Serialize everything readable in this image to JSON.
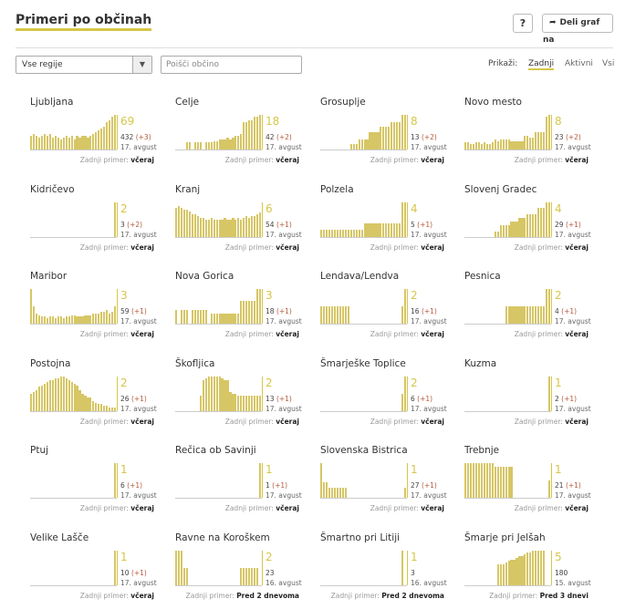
{
  "header": {
    "title": "Primeri po občinah",
    "help_label": "?",
    "share_label": "Deli graf na"
  },
  "filters": {
    "region_select": "Vse regije",
    "search_placeholder": "Poišči občino"
  },
  "view": {
    "label": "Prikaži:",
    "options": [
      "Zadnji",
      "Aktivni",
      "Vsi"
    ],
    "selected": "Zadnji"
  },
  "last_case_label": "Zadnji primer:",
  "colors": {
    "accent": "#d6c649",
    "bar": "#d6c665",
    "delta": "#b45a3c"
  },
  "municipalities": [
    {
      "name": "Ljubljana",
      "latest": "69",
      "total": "432",
      "delta": "(+3)",
      "date": "17. avgust",
      "last": "včeraj",
      "bars": [
        0.4,
        0.45,
        0.4,
        0.35,
        0.4,
        0.45,
        0.4,
        0.45,
        0.35,
        0.4,
        0.35,
        0.3,
        0.35,
        0.4,
        0.35,
        0.4,
        0.3,
        0.4,
        0.35,
        0.4,
        0.4,
        0.35,
        0.4,
        0.45,
        0.5,
        0.55,
        0.6,
        0.65,
        0.8,
        0.85,
        0.95,
        1.0
      ]
    },
    {
      "name": "Celje",
      "latest": "18",
      "total": "42",
      "delta": "(+2)",
      "date": "17. avgust",
      "last": "včeraj",
      "bars": [
        0,
        0,
        0,
        0,
        0.2,
        0.2,
        0,
        0.2,
        0.2,
        0.2,
        0,
        0.2,
        0.2,
        0.2,
        0.25,
        0.25,
        0.3,
        0.3,
        0.3,
        0.35,
        0.3,
        0.35,
        0.4,
        0.4,
        0.45,
        0.8,
        0.8,
        0.85,
        0.85,
        0.95,
        0.95,
        1.0
      ]
    },
    {
      "name": "Grosuplje",
      "latest": "8",
      "total": "13",
      "delta": "(+2)",
      "date": "17. avgust",
      "last": "včeraj",
      "bars": [
        0,
        0,
        0,
        0,
        0,
        0,
        0,
        0,
        0,
        0,
        0,
        0.15,
        0.15,
        0.15,
        0.3,
        0.3,
        0.3,
        0.3,
        0.5,
        0.5,
        0.5,
        0.5,
        0.65,
        0.65,
        0.65,
        0.65,
        0.8,
        0.8,
        0.8,
        0.8,
        1.0,
        1.0
      ]
    },
    {
      "name": "Novo mesto",
      "latest": "8",
      "total": "23",
      "delta": "(+2)",
      "date": "17. avgust",
      "last": "včeraj",
      "bars": [
        0.2,
        0.2,
        0.15,
        0.15,
        0.2,
        0.2,
        0.15,
        0.2,
        0.15,
        0.15,
        0.2,
        0.3,
        0.25,
        0.3,
        0.3,
        0.3,
        0.3,
        0.25,
        0.25,
        0.25,
        0.25,
        0.25,
        0.4,
        0.4,
        0.35,
        0.35,
        0.5,
        0.5,
        0.5,
        0.5,
        0.95,
        1.0
      ]
    },
    {
      "name": "Kidričevo",
      "latest": "2",
      "total": "3",
      "delta": "(+2)",
      "date": "17. avgust",
      "last": "včeraj",
      "bars": [
        0,
        0,
        0,
        0,
        0,
        0,
        0,
        0,
        0,
        0,
        0,
        0,
        0,
        0,
        0,
        0,
        0,
        0,
        0,
        0,
        0,
        0,
        0,
        0,
        0,
        0,
        0,
        0,
        0,
        0,
        0,
        1.0
      ]
    },
    {
      "name": "Kranj",
      "latest": "6",
      "total": "54",
      "delta": "(+1)",
      "date": "17. avgust",
      "last": "včeraj",
      "bars": [
        0.85,
        0.9,
        0.85,
        0.8,
        0.8,
        0.75,
        0.65,
        0.65,
        0.6,
        0.55,
        0.55,
        0.5,
        0.5,
        0.55,
        0.5,
        0.5,
        0.5,
        0.5,
        0.55,
        0.5,
        0.5,
        0.55,
        0.5,
        0.55,
        0.5,
        0.55,
        0.6,
        0.55,
        0.6,
        0.6,
        0.65,
        0.7
      ]
    },
    {
      "name": "Polzela",
      "latest": "4",
      "total": "5",
      "delta": "(+1)",
      "date": "17. avgust",
      "last": "včeraj",
      "bars": [
        0.2,
        0.2,
        0.2,
        0.2,
        0.2,
        0.2,
        0.2,
        0.2,
        0.2,
        0.2,
        0.2,
        0.2,
        0.2,
        0.2,
        0.2,
        0.2,
        0.4,
        0.4,
        0.4,
        0.4,
        0.4,
        0.4,
        0.4,
        0.4,
        0.4,
        0.4,
        0.4,
        0.4,
        0.4,
        0.4,
        1.0,
        1.0
      ]
    },
    {
      "name": "Slovenj Gradec",
      "latest": "4",
      "total": "29",
      "delta": "(+1)",
      "date": "17. avgust",
      "last": "včeraj",
      "bars": [
        0,
        0,
        0,
        0,
        0,
        0,
        0,
        0,
        0,
        0,
        0,
        0.15,
        0.15,
        0.35,
        0.35,
        0.35,
        0.35,
        0.45,
        0.45,
        0.45,
        0.55,
        0.55,
        0.55,
        0.65,
        0.65,
        0.65,
        0.65,
        0.85,
        0.85,
        0.85,
        1.0,
        1.0
      ]
    },
    {
      "name": "Maribor",
      "latest": "3",
      "total": "59",
      "delta": "(+1)",
      "date": "17. avgust",
      "last": "včeraj",
      "bars": [
        1.0,
        0.5,
        0.3,
        0.25,
        0.2,
        0.2,
        0.15,
        0.2,
        0.2,
        0.15,
        0.2,
        0.2,
        0.15,
        0.2,
        0.2,
        0.25,
        0.25,
        0.2,
        0.2,
        0.2,
        0.25,
        0.25,
        0.25,
        0.3,
        0.3,
        0.3,
        0.35,
        0.35,
        0.4,
        0.3,
        0.35,
        0.5
      ]
    },
    {
      "name": "Nova Gorica",
      "latest": "3",
      "total": "18",
      "delta": "(+1)",
      "date": "17. avgust",
      "last": "včeraj",
      "bars": [
        0.4,
        0,
        0.4,
        0.4,
        0.4,
        0,
        0.4,
        0.4,
        0.4,
        0.4,
        0.4,
        0.4,
        0,
        0.3,
        0.3,
        0.3,
        0.3,
        0.3,
        0.3,
        0.3,
        0.3,
        0.3,
        0.3,
        0.3,
        0.65,
        0.65,
        0.65,
        0.65,
        0.65,
        0.65,
        1.0,
        1.0
      ]
    },
    {
      "name": "Lendava/Lendva",
      "latest": "2",
      "total": "16",
      "delta": "(+1)",
      "date": "17. avgust",
      "last": "včeraj",
      "bars": [
        0.5,
        0.5,
        0.5,
        0.5,
        0.5,
        0.5,
        0.5,
        0.5,
        0.5,
        0.5,
        0.5,
        0,
        0,
        0,
        0,
        0,
        0,
        0,
        0,
        0,
        0,
        0,
        0,
        0,
        0,
        0,
        0,
        0,
        0,
        0,
        0.5,
        1.0
      ]
    },
    {
      "name": "Pesnica",
      "latest": "2",
      "total": "4",
      "delta": "(+1)",
      "date": "17. avgust",
      "last": "včeraj",
      "bars": [
        0,
        0,
        0,
        0,
        0,
        0,
        0,
        0,
        0,
        0,
        0,
        0,
        0,
        0,
        0,
        0.5,
        0.5,
        0.5,
        0.5,
        0.5,
        0.5,
        0.5,
        0.5,
        0.5,
        0.5,
        0.5,
        0.5,
        0.5,
        0.5,
        0.5,
        1.0,
        1.0
      ]
    },
    {
      "name": "Postojna",
      "latest": "2",
      "total": "26",
      "delta": "(+1)",
      "date": "17. avgust",
      "last": "včeraj",
      "bars": [
        0.5,
        0.55,
        0.6,
        0.7,
        0.75,
        0.8,
        0.85,
        0.9,
        0.9,
        0.95,
        0.95,
        1.0,
        1.0,
        0.95,
        0.9,
        0.85,
        0.8,
        0.75,
        0.6,
        0.5,
        0.45,
        0.4,
        0.4,
        0.3,
        0.25,
        0.2,
        0.2,
        0.15,
        0.15,
        0.1,
        0.1,
        0.1
      ]
    },
    {
      "name": "Škofljica",
      "latest": "2",
      "total": "13",
      "delta": "(+1)",
      "date": "17. avgust",
      "last": "včeraj",
      "bars": [
        0,
        0,
        0,
        0,
        0,
        0,
        0,
        0,
        0,
        0.45,
        0.9,
        0.95,
        1.0,
        1.0,
        1.0,
        1.0,
        1.0,
        0.95,
        0.9,
        0.9,
        0.55,
        0.5,
        0.5,
        0.45,
        0.45,
        0.45,
        0.45,
        0.45,
        0.45,
        0.45,
        0.45,
        0.45
      ]
    },
    {
      "name": "Šmarješke Toplice",
      "latest": "2",
      "total": "6",
      "delta": "(+1)",
      "date": "17. avgust",
      "last": "včeraj",
      "bars": [
        0,
        0,
        0,
        0,
        0,
        0,
        0,
        0,
        0,
        0,
        0,
        0,
        0,
        0,
        0,
        0,
        0,
        0,
        0,
        0,
        0,
        0,
        0,
        0,
        0,
        0,
        0,
        0,
        0,
        0,
        0.5,
        1.0
      ]
    },
    {
      "name": "Kuzma",
      "latest": "1",
      "total": "2",
      "delta": "(+1)",
      "date": "17. avgust",
      "last": "včeraj",
      "bars": [
        0,
        0,
        0,
        0,
        0,
        0,
        0,
        0,
        0,
        0,
        0,
        0,
        0,
        0,
        0,
        0,
        0,
        0,
        0,
        0,
        0,
        0,
        0,
        0,
        0,
        0,
        0,
        0,
        0,
        0,
        0,
        1.0
      ]
    },
    {
      "name": "Ptuj",
      "latest": "1",
      "total": "6",
      "delta": "(+1)",
      "date": "17. avgust",
      "last": "včeraj",
      "bars": [
        0,
        0,
        0,
        0,
        0,
        0,
        0,
        0,
        0,
        0,
        0,
        0,
        0,
        0,
        0,
        0,
        0,
        0,
        0,
        0,
        0,
        0,
        0,
        0,
        0,
        0,
        0,
        0,
        0,
        0,
        0,
        1.0
      ]
    },
    {
      "name": "Rečica ob Savinji",
      "latest": "1",
      "total": "1",
      "delta": "(+1)",
      "date": "17. avgust",
      "last": "včeraj",
      "bars": [
        0,
        0,
        0,
        0,
        0,
        0,
        0,
        0,
        0,
        0,
        0,
        0,
        0,
        0,
        0,
        0,
        0,
        0,
        0,
        0,
        0,
        0,
        0,
        0,
        0,
        0,
        0,
        0,
        0,
        0,
        0,
        1.0
      ]
    },
    {
      "name": "Slovenska Bistrica",
      "latest": "1",
      "total": "27",
      "delta": "(+1)",
      "date": "17. avgust",
      "last": "včeraj",
      "bars": [
        1.0,
        0.45,
        0.45,
        0.3,
        0.3,
        0.3,
        0.3,
        0.3,
        0.3,
        0.3,
        0,
        0,
        0,
        0,
        0,
        0,
        0,
        0,
        0,
        0,
        0,
        0,
        0,
        0,
        0,
        0,
        0,
        0,
        0,
        0,
        0,
        0.3
      ]
    },
    {
      "name": "Trebnje",
      "latest": "1",
      "total": "21",
      "delta": "(+1)",
      "date": "17. avgust",
      "last": "včeraj",
      "bars": [
        1.0,
        1.0,
        1.0,
        1.0,
        1.0,
        1.0,
        1.0,
        1.0,
        1.0,
        1.0,
        1.0,
        0.9,
        0.9,
        0.9,
        0.9,
        0.9,
        0.9,
        0.9,
        0,
        0,
        0,
        0,
        0,
        0,
        0,
        0,
        0,
        0,
        0,
        0,
        0,
        0.5
      ]
    },
    {
      "name": "Velike Lašče",
      "latest": "1",
      "total": "10",
      "delta": "(+1)",
      "date": "17. avgust",
      "last": "včeraj",
      "bars": [
        0,
        0,
        0,
        0,
        0,
        0,
        0,
        0,
        0,
        0,
        0,
        0,
        0,
        0,
        0,
        0,
        0,
        0,
        0,
        0,
        0,
        0,
        0,
        0,
        0,
        0,
        0,
        0,
        0,
        0,
        0,
        1.0
      ]
    },
    {
      "name": "Ravne na Koroškem",
      "latest": "2",
      "total": "23",
      "delta": "",
      "date": "16. avgust",
      "last": "Pred 2 dnevoma",
      "bars": [
        1.0,
        1.0,
        1.0,
        0.5,
        0.5,
        0,
        0,
        0,
        0,
        0,
        0,
        0,
        0,
        0,
        0,
        0,
        0,
        0,
        0,
        0,
        0,
        0,
        0,
        0,
        0.5,
        0.5,
        0.5,
        0.5,
        0.5,
        0.5,
        0.5,
        0
      ]
    },
    {
      "name": "Šmartno pri Litiji",
      "latest": "1",
      "total": "3",
      "delta": "",
      "date": "16. avgust",
      "last": "Pred 2 dnevoma",
      "bars": [
        0,
        0,
        0,
        0,
        0,
        0,
        0,
        0,
        0,
        0,
        0,
        0,
        0,
        0,
        0,
        0,
        0,
        0,
        0,
        0,
        0,
        0,
        0,
        0,
        0,
        0,
        0,
        0,
        0,
        0,
        1.0,
        0
      ]
    },
    {
      "name": "Šmarje pri Jelšah",
      "latest": "5",
      "total": "180",
      "delta": "",
      "date": "15. avgust",
      "last": "Pred 3 dnevi",
      "bars": [
        0,
        0,
        0,
        0,
        0,
        0,
        0,
        0,
        0,
        0,
        0,
        0,
        0.6,
        0.6,
        0.6,
        0.65,
        0.7,
        0.75,
        0.75,
        0.8,
        0.85,
        0.85,
        0.9,
        0.95,
        0.95,
        1.0,
        1.0,
        1.0,
        1.0,
        1.0,
        0,
        0
      ]
    }
  ]
}
